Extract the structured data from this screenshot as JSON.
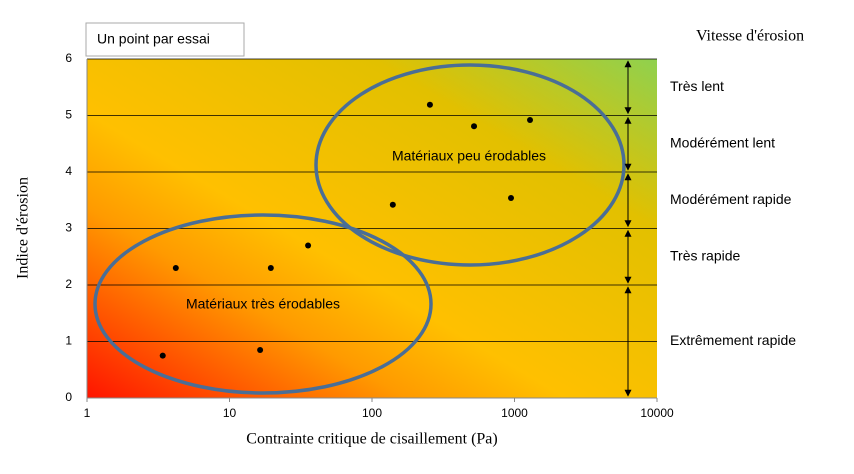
{
  "chart_data": {
    "type": "scatter",
    "x_label": "Contrainte critique de cisaillement (Pa)",
    "y_label": "Indice d'érosion",
    "legend": "Un point par essai",
    "x_log": true,
    "xlim": [
      1,
      10000
    ],
    "xticks": [
      1,
      10,
      100,
      1000,
      10000
    ],
    "ylim": [
      0,
      6
    ],
    "yticks": [
      0,
      1,
      2,
      3,
      4,
      5,
      6
    ],
    "grid": true,
    "color": "#000000",
    "x": [
      3.4,
      4.2,
      16.4,
      19.5,
      35.6,
      140,
      255,
      520,
      945,
      1285
    ],
    "values": [
      0.75,
      2.3,
      0.85,
      2.3,
      2.7,
      3.42,
      5.19,
      4.81,
      3.54,
      4.92
    ],
    "annotations": [
      "Matériaux très érodables",
      "Matériaux peu érodables"
    ],
    "rate_title": "Vitesse d'érosion",
    "rates": [
      {
        "label": "Très lent",
        "range": [
          5,
          6
        ]
      },
      {
        "label": "Modérément lent",
        "range": [
          4,
          5
        ]
      },
      {
        "label": "Modérément rapide",
        "range": [
          3,
          4
        ]
      },
      {
        "label": "Très rapide",
        "range": [
          2,
          3
        ]
      },
      {
        "label": "Extrêmement rapide",
        "range": [
          0,
          2
        ]
      }
    ]
  }
}
